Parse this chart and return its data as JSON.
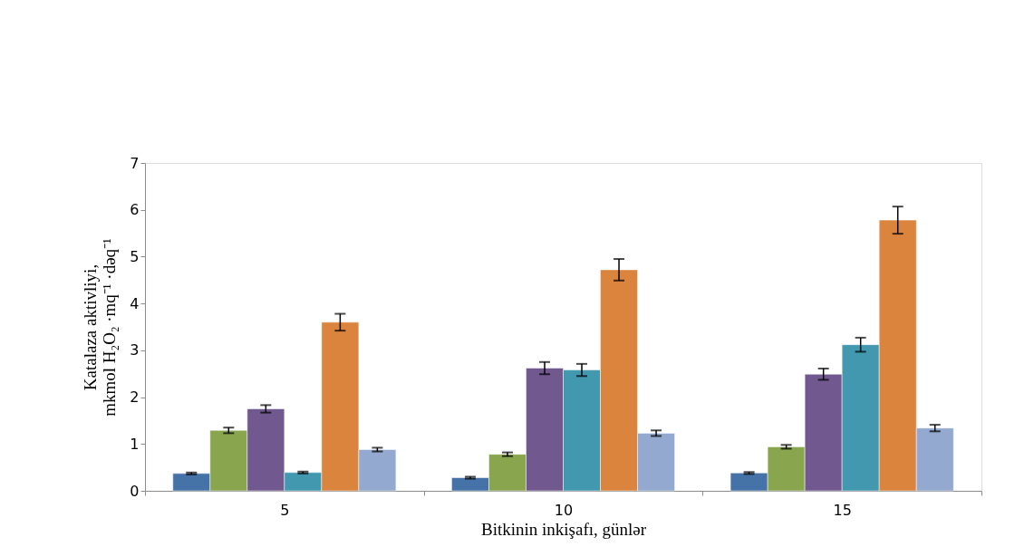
{
  "chart_data": {
    "type": "bar",
    "xlabel": "Bitkinin inkişafı, günlər",
    "ylabel": "Katalaza aktivliyi,\nmkmol H₂O₂ ·mq⁻¹ ·dəq⁻¹",
    "categories": [
      "5",
      "10",
      "15"
    ],
    "series": [
      {
        "color": "#4572a7",
        "values": [
          0.37,
          0.28,
          0.38
        ],
        "errors": [
          0.02,
          0.02,
          0.02
        ]
      },
      {
        "color": "#89a54e",
        "values": [
          1.29,
          0.78,
          0.94
        ],
        "errors": [
          0.06,
          0.04,
          0.04
        ]
      },
      {
        "color": "#71588f",
        "values": [
          1.75,
          2.62,
          2.49
        ],
        "errors": [
          0.08,
          0.13,
          0.12
        ]
      },
      {
        "color": "#4198af",
        "values": [
          0.39,
          2.58,
          3.12
        ],
        "errors": [
          0.02,
          0.13,
          0.15
        ]
      },
      {
        "color": "#db843d",
        "values": [
          3.6,
          4.72,
          5.78
        ],
        "errors": [
          0.18,
          0.23,
          0.29
        ]
      },
      {
        "color": "#93a9cf",
        "values": [
          0.88,
          1.23,
          1.34
        ],
        "errors": [
          0.04,
          0.06,
          0.07
        ]
      }
    ],
    "ylim": [
      0,
      7
    ],
    "yticks": [
      0,
      1,
      2,
      3,
      4,
      5,
      6,
      7
    ],
    "grid": false,
    "legend": false
  }
}
